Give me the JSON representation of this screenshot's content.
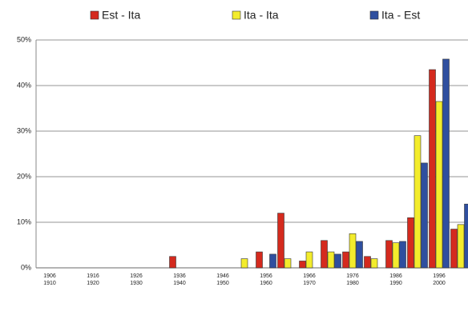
{
  "chart_data": {
    "type": "bar",
    "categories": [
      "1906 1910",
      null,
      "1916 1920",
      null,
      "1926 1930",
      null,
      "1936 1940",
      null,
      "1946 1950",
      null,
      "1956 1960",
      null,
      "1966 1970",
      null,
      "1976 1980",
      null,
      "1986 1990",
      null,
      "1996 2000",
      null
    ],
    "series": [
      {
        "name": "Est - Ita",
        "color": "#d42a1e",
        "values": [
          0,
          0,
          0,
          0,
          0,
          0,
          2.5,
          0,
          0,
          0,
          3.5,
          12,
          1.5,
          6,
          3.5,
          2.5,
          6,
          11,
          43.5,
          8.5
        ]
      },
      {
        "name": "Ita - Ita",
        "color": "#f3ec2c",
        "values": [
          0,
          0,
          0,
          0,
          0,
          0,
          0,
          0,
          0,
          2,
          0,
          2,
          3.5,
          3.5,
          7.5,
          2,
          5.5,
          29,
          36.5,
          9.5
        ]
      },
      {
        "name": "Ita - Est",
        "color": "#2f4f9f",
        "values": [
          0,
          0,
          0,
          0,
          0,
          0,
          0,
          0,
          0,
          0,
          3,
          0,
          0,
          3,
          5.8,
          0,
          5.8,
          23,
          45.8,
          14
        ]
      }
    ],
    "ylim": [
      0,
      50
    ],
    "yticks": [
      {
        "value": 0,
        "label": "0%"
      },
      {
        "value": 10,
        "label": "10%"
      },
      {
        "value": 20,
        "label": "20%"
      },
      {
        "value": 30,
        "label": "30%"
      },
      {
        "value": 40,
        "label": "40%"
      },
      {
        "value": 50,
        "label": "50%"
      }
    ],
    "grid": true,
    "legend": "top"
  }
}
